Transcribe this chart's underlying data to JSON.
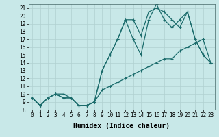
{
  "xlabel": "Humidex (Indice chaleur)",
  "bg_color": "#c8e8e8",
  "line_color": "#1a6b6b",
  "xlim": [
    -0.5,
    23.5
  ],
  "ylim": [
    8,
    21.5
  ],
  "xticks": [
    0,
    1,
    2,
    3,
    4,
    5,
    6,
    7,
    8,
    9,
    10,
    11,
    12,
    13,
    14,
    15,
    16,
    17,
    18,
    19,
    20,
    21,
    22,
    23
  ],
  "yticks": [
    8,
    9,
    10,
    11,
    12,
    13,
    14,
    15,
    16,
    17,
    18,
    19,
    20,
    21
  ],
  "line1_x": [
    0,
    1,
    2,
    3,
    4,
    5,
    6,
    7,
    8,
    9,
    10,
    11,
    12,
    13,
    14,
    15,
    16,
    17,
    18,
    19,
    20,
    21,
    22,
    23
  ],
  "line1_y": [
    9.5,
    8.5,
    9.5,
    10.0,
    10.0,
    9.5,
    8.5,
    8.5,
    9.0,
    10.5,
    11.0,
    11.5,
    12.0,
    12.5,
    13.0,
    13.5,
    14.0,
    14.5,
    14.5,
    15.5,
    16.0,
    16.5,
    17.0,
    14.0
  ],
  "line2_x": [
    0,
    1,
    2,
    3,
    4,
    5,
    6,
    7,
    8,
    9,
    10,
    11,
    12,
    13,
    14,
    15,
    16,
    17,
    18,
    19,
    20,
    21,
    22,
    23
  ],
  "line2_y": [
    9.5,
    8.5,
    9.5,
    10.0,
    9.5,
    9.5,
    8.5,
    8.5,
    9.0,
    13.0,
    15.0,
    17.0,
    19.5,
    19.5,
    17.5,
    20.5,
    21.0,
    20.5,
    19.5,
    18.5,
    20.5,
    17.0,
    15.0,
    14.0
  ],
  "line3_x": [
    0,
    1,
    2,
    3,
    4,
    5,
    6,
    7,
    8,
    9,
    10,
    11,
    12,
    13,
    14,
    15,
    16,
    17,
    18,
    19,
    20,
    21,
    22,
    23
  ],
  "line3_y": [
    9.5,
    8.5,
    9.5,
    10.0,
    9.5,
    9.5,
    8.5,
    8.5,
    9.0,
    13.0,
    15.0,
    17.0,
    19.5,
    17.0,
    15.0,
    19.5,
    21.5,
    19.5,
    18.5,
    19.5,
    20.5,
    17.0,
    15.0,
    14.0
  ],
  "marker": "+",
  "markersize": 3,
  "linewidth": 0.9,
  "grid_color": "#b0d0d0",
  "xlabel_fontsize": 7,
  "tick_fontsize": 5.5
}
